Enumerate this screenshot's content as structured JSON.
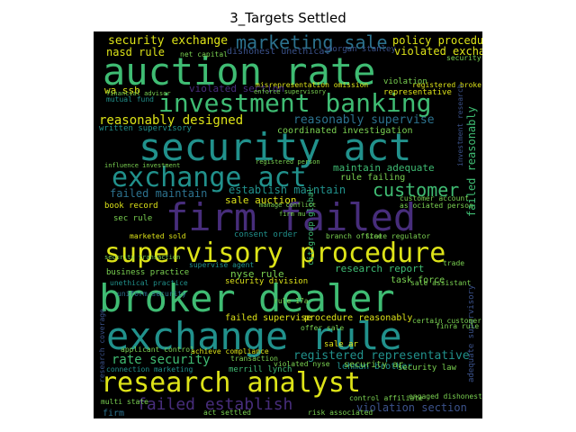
{
  "title": "3_Targets Settled",
  "palette": {
    "yellow": "#dde318",
    "green": "#3fbc73",
    "lime": "#7ad151",
    "teal": "#21918c",
    "blue": "#2c728e",
    "indigo": "#3b528b",
    "purple": "#472d7b",
    "dark": "#440154",
    "background": "#000000"
  },
  "words": [
    {
      "text": "security exchange",
      "color": "#dde318"
    },
    {
      "text": "marketing sale",
      "color": "#2c728e"
    },
    {
      "text": "policy procedure",
      "color": "#dde318"
    },
    {
      "text": "nasd rule",
      "color": "#dde318"
    },
    {
      "text": "dishonest unethical",
      "color": "#3b528b"
    },
    {
      "text": "violated exchange",
      "color": "#dde318"
    },
    {
      "text": "auction rate",
      "color": "#3fbc73"
    },
    {
      "text": "misrepresentation omission",
      "color": "#dde318"
    },
    {
      "text": "wa ssb",
      "color": "#dde318"
    },
    {
      "text": "violated section",
      "color": "#472d7b"
    },
    {
      "text": "mutual fund",
      "color": "#21918c"
    },
    {
      "text": "investment banking",
      "color": "#3fbc73"
    },
    {
      "text": "reasonably designed",
      "color": "#dde318"
    },
    {
      "text": "reasonably supervise",
      "color": "#2c728e"
    },
    {
      "text": "written supervisory",
      "color": "#21918c"
    },
    {
      "text": "coordinated investigation",
      "color": "#7ad151"
    },
    {
      "text": "security act",
      "color": "#21918c"
    },
    {
      "text": "exchange act",
      "color": "#21918c"
    },
    {
      "text": "maintain adequate",
      "color": "#3fbc73"
    },
    {
      "text": "rule failing",
      "color": "#7ad151"
    },
    {
      "text": "customer",
      "color": "#3fbc73"
    },
    {
      "text": "failed maintain",
      "color": "#2c728e"
    },
    {
      "text": "establish maintain",
      "color": "#21918c"
    },
    {
      "text": "sale auction",
      "color": "#dde318"
    },
    {
      "text": "customer account",
      "color": "#7ad151"
    },
    {
      "text": "associated person",
      "color": "#7ad151"
    },
    {
      "text": "book record",
      "color": "#dde318"
    },
    {
      "text": "sec rule",
      "color": "#7ad151"
    },
    {
      "text": "firm failed",
      "color": "#472d7b"
    },
    {
      "text": "marketed sold",
      "color": "#dde318"
    },
    {
      "text": "supervisory procedure",
      "color": "#dde318"
    },
    {
      "text": "consent order",
      "color": "#21918c"
    },
    {
      "text": "branch office",
      "color": "#7ad151"
    },
    {
      "text": "state regulator",
      "color": "#7ad151"
    },
    {
      "text": "research report",
      "color": "#3fbc73"
    },
    {
      "text": "task force",
      "color": "#7ad151"
    },
    {
      "text": "business practice",
      "color": "#7ad151"
    },
    {
      "text": "supervise agent",
      "color": "#21918c"
    },
    {
      "text": "nyse rule",
      "color": "#7ad151"
    },
    {
      "text": "security division",
      "color": "#dde318"
    },
    {
      "text": "unethical practice",
      "color": "#21918c"
    },
    {
      "text": "sale assistant",
      "color": "#7ad151"
    },
    {
      "text": "broker dealer",
      "color": "#3fbc73"
    },
    {
      "text": "rule 17a",
      "color": "#7ad151"
    },
    {
      "text": "uniform security",
      "color": "#2c728e"
    },
    {
      "text": "failed supervise",
      "color": "#dde318"
    },
    {
      "text": "procedure reasonably",
      "color": "#dde318"
    },
    {
      "text": "exchange rule",
      "color": "#21918c"
    },
    {
      "text": "rate security",
      "color": "#3fbc73"
    },
    {
      "text": "transaction",
      "color": "#7ad151"
    },
    {
      "text": "registered representative",
      "color": "#21918c"
    },
    {
      "text": "connection marketing",
      "color": "#21918c"
    },
    {
      "text": "merrill lynch",
      "color": "#3fbc73"
    },
    {
      "text": "lehman brother",
      "color": "#21918c"
    },
    {
      "text": "security law",
      "color": "#7ad151"
    },
    {
      "text": "research analyst",
      "color": "#dde318"
    },
    {
      "text": "failed establish",
      "color": "#472d7b"
    },
    {
      "text": "violation section",
      "color": "#3b528b"
    },
    {
      "text": "firm",
      "color": "#2c728e"
    },
    {
      "text": "citigroup global",
      "color": "#3fbc73"
    },
    {
      "text": "failed reasonably",
      "color": "#3fbc73"
    },
    {
      "text": "adequate supervisory",
      "color": "#3b528b"
    },
    {
      "text": "registered broker",
      "color": "#dde318"
    },
    {
      "text": "representative",
      "color": "#dde318"
    },
    {
      "text": "violation",
      "color": "#7ad151"
    },
    {
      "text": "achieve compliance",
      "color": "#dde318"
    },
    {
      "text": "applicant control",
      "color": "#7ad151"
    },
    {
      "text": "certain customer",
      "color": "#7ad151"
    },
    {
      "text": "engaged dishonest",
      "color": "#7ad151"
    },
    {
      "text": "control affiliate",
      "color": "#7ad151"
    },
    {
      "text": "morgan stanley",
      "color": "#3b528b"
    },
    {
      "text": "violated nyse",
      "color": "#7ad151"
    },
    {
      "text": "security ar",
      "color": "#7ad151"
    },
    {
      "text": "net capital",
      "color": "#7ad151"
    },
    {
      "text": "financial advisor",
      "color": "#7ad151"
    },
    {
      "text": "enforce supervisory",
      "color": "#7ad151"
    },
    {
      "text": "influence investment",
      "color": "#7ad151"
    },
    {
      "text": "registered person",
      "color": "#7ad151"
    },
    {
      "text": "manage conflict",
      "color": "#7ad151"
    },
    {
      "text": "firm mu",
      "color": "#7ad151"
    },
    {
      "text": "security transaction",
      "color": "#7ad151"
    },
    {
      "text": "trade",
      "color": "#7ad151"
    },
    {
      "text": "finra rule",
      "color": "#7ad151"
    },
    {
      "text": "offer sale",
      "color": "#7ad151"
    },
    {
      "text": "sale ar",
      "color": "#dde318"
    },
    {
      "text": "act settled",
      "color": "#7ad151"
    },
    {
      "text": "risk associated",
      "color": "#7ad151"
    },
    {
      "text": "multi state",
      "color": "#7ad151"
    },
    {
      "text": "security llc",
      "color": "#7ad151"
    },
    {
      "text": "research coverage",
      "color": "#3b528b"
    },
    {
      "text": "investment research",
      "color": "#3b528b"
    }
  ]
}
